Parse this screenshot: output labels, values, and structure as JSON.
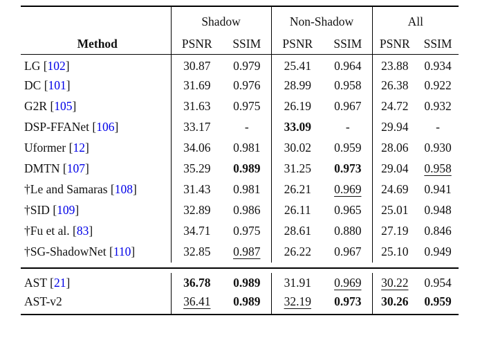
{
  "table": {
    "method_header": "Method",
    "sub_headers": [
      "PSNR",
      "SSIM"
    ],
    "col_groups": [
      {
        "label": "Shadow"
      },
      {
        "label": "Non-Shadow"
      },
      {
        "label": "All"
      }
    ],
    "citation_color": "#0000e8",
    "rows": [
      {
        "name": "LG",
        "cite": "102",
        "cells": [
          {
            "v": "30.87"
          },
          {
            "v": "0.979"
          },
          {
            "v": "25.41"
          },
          {
            "v": "0.964"
          },
          {
            "v": "23.88"
          },
          {
            "v": "0.934"
          }
        ]
      },
      {
        "name": "DC",
        "cite": "101",
        "cells": [
          {
            "v": "31.69"
          },
          {
            "v": "0.976"
          },
          {
            "v": "28.99"
          },
          {
            "v": "0.958"
          },
          {
            "v": "26.38"
          },
          {
            "v": "0.922"
          }
        ]
      },
      {
        "name": "G2R",
        "cite": "105",
        "cells": [
          {
            "v": "31.63"
          },
          {
            "v": "0.975"
          },
          {
            "v": "26.19"
          },
          {
            "v": "0.967"
          },
          {
            "v": "24.72"
          },
          {
            "v": "0.932"
          }
        ]
      },
      {
        "name": "DSP-FFANet",
        "cite": "106",
        "cells": [
          {
            "v": "33.17"
          },
          {
            "v": "-"
          },
          {
            "v": "33.09",
            "b": true
          },
          {
            "v": "-"
          },
          {
            "v": "29.94"
          },
          {
            "v": "-"
          }
        ]
      },
      {
        "name": "Uformer",
        "cite": "12",
        "cells": [
          {
            "v": "34.06"
          },
          {
            "v": "0.981"
          },
          {
            "v": "30.02"
          },
          {
            "v": "0.959"
          },
          {
            "v": "28.06"
          },
          {
            "v": "0.930"
          }
        ]
      },
      {
        "name": "DMTN",
        "cite": "107",
        "cells": [
          {
            "v": "35.29"
          },
          {
            "v": "0.989",
            "b": true
          },
          {
            "v": "31.25"
          },
          {
            "v": "0.973",
            "b": true
          },
          {
            "v": "29.04"
          },
          {
            "v": "0.958",
            "u": true
          }
        ]
      },
      {
        "name": "†Le and Samaras",
        "cite": "108",
        "cells": [
          {
            "v": "31.43"
          },
          {
            "v": "0.981"
          },
          {
            "v": "26.21"
          },
          {
            "v": "0.969",
            "u": true
          },
          {
            "v": "24.69"
          },
          {
            "v": "0.941"
          }
        ]
      },
      {
        "name": "†SID",
        "cite": "109",
        "cells": [
          {
            "v": "32.89"
          },
          {
            "v": "0.986"
          },
          {
            "v": "26.11"
          },
          {
            "v": "0.965"
          },
          {
            "v": "25.01"
          },
          {
            "v": "0.948"
          }
        ]
      },
      {
        "name": "†Fu et al.",
        "cite": "83",
        "cells": [
          {
            "v": "34.71"
          },
          {
            "v": "0.975"
          },
          {
            "v": "28.61"
          },
          {
            "v": "0.880"
          },
          {
            "v": "27.19"
          },
          {
            "v": "0.846"
          }
        ]
      },
      {
        "name": "†SG-ShadowNet",
        "cite": "110",
        "cells": [
          {
            "v": "32.85"
          },
          {
            "v": "0.987",
            "u": true
          },
          {
            "v": "26.22"
          },
          {
            "v": "0.967"
          },
          {
            "v": "25.10"
          },
          {
            "v": "0.949"
          }
        ]
      }
    ],
    "footer_rows": [
      {
        "name": "AST",
        "cite": "21",
        "cells": [
          {
            "v": "36.78",
            "b": true
          },
          {
            "v": "0.989",
            "b": true
          },
          {
            "v": "31.91"
          },
          {
            "v": "0.969",
            "u": true
          },
          {
            "v": "30.22",
            "u": true
          },
          {
            "v": "0.954"
          }
        ]
      },
      {
        "name": "AST-v2",
        "cite": null,
        "cells": [
          {
            "v": "36.41",
            "u": true
          },
          {
            "v": "0.989",
            "b": true
          },
          {
            "v": "32.19",
            "u": true
          },
          {
            "v": "0.973",
            "b": true
          },
          {
            "v": "30.26",
            "b": true
          },
          {
            "v": "0.959",
            "b": true
          }
        ]
      }
    ]
  }
}
